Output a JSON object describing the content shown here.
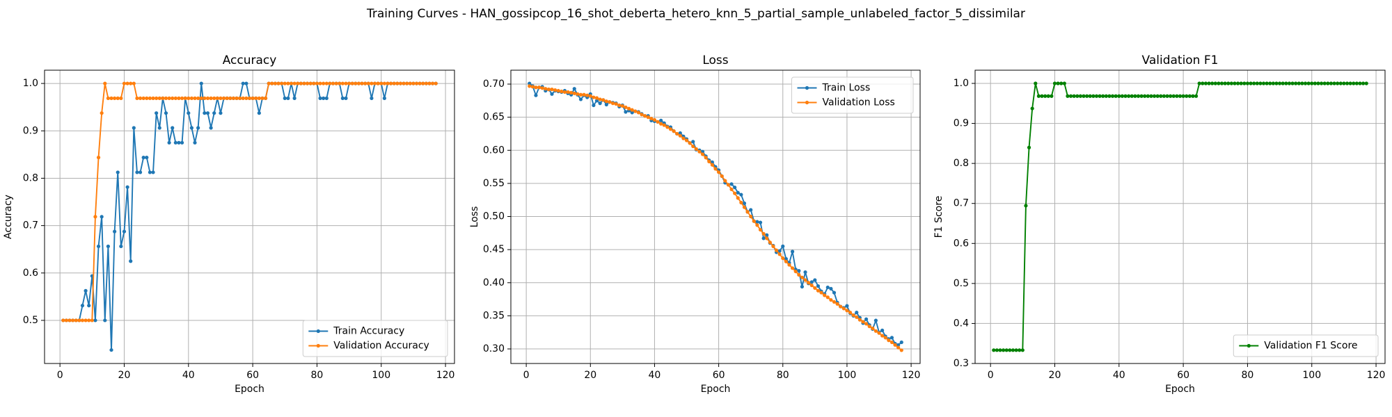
{
  "title": "Training Curves - HAN_gossipcop_16_shot_deberta_hetero_knn_5_partial_sample_unlabeled_factor_5_dissimilar",
  "chart_data": [
    {
      "type": "line",
      "title": "Accuracy",
      "xlabel": "Epoch",
      "ylabel": "Accuracy",
      "grid": true,
      "legend": "lower right",
      "x": [
        1,
        2,
        3,
        4,
        5,
        6,
        7,
        8,
        9,
        10,
        11,
        12,
        13,
        14,
        15,
        16,
        17,
        18,
        19,
        20,
        21,
        22,
        23,
        24,
        25,
        26,
        27,
        28,
        29,
        30,
        31,
        32,
        33,
        34,
        35,
        36,
        37,
        38,
        39,
        40,
        41,
        42,
        43,
        44,
        45,
        46,
        47,
        48,
        49,
        50,
        51,
        52,
        53,
        54,
        55,
        56,
        57,
        58,
        59,
        60,
        61,
        62,
        63,
        64,
        65,
        66,
        67,
        68,
        69,
        70,
        71,
        72,
        73,
        74,
        75,
        76,
        77,
        78,
        79,
        80,
        81,
        82,
        83,
        84,
        85,
        86,
        87,
        88,
        89,
        90,
        91,
        92,
        93,
        94,
        95,
        96,
        97,
        98,
        99,
        100,
        101,
        102,
        103,
        104,
        105,
        106,
        107,
        108,
        109,
        110,
        111,
        112,
        113,
        114,
        115,
        116,
        117
      ],
      "xlim": [
        -4.8,
        122.8
      ],
      "xticks": [
        0,
        20,
        40,
        60,
        80,
        100,
        120
      ],
      "ylim": [
        0.409,
        1.028
      ],
      "yticks": [
        0.5,
        0.6,
        0.7,
        0.8,
        0.9,
        {
          "value": 1,
          "label": "1.0"
        }
      ],
      "series": [
        {
          "name": "Train Accuracy",
          "color": "#1f77b4",
          "values": [
            0.5,
            0.5,
            0.5,
            0.5,
            0.5,
            0.5,
            0.53125,
            0.5625,
            0.53125,
            0.59375,
            0.5,
            0.65625,
            0.71875,
            0.5,
            0.65625,
            0.4375,
            0.6875,
            0.8125,
            0.65625,
            0.6875,
            0.78125,
            0.625,
            0.90625,
            0.8125,
            0.8125,
            0.84375,
            0.84375,
            0.8125,
            0.8125,
            0.9375,
            0.90625,
            0.96875,
            0.9375,
            0.875,
            0.90625,
            0.875,
            0.875,
            0.875,
            0.96875,
            0.9375,
            0.90625,
            0.875,
            0.90625,
            1,
            0.9375,
            0.9375,
            0.90625,
            0.9375,
            0.96875,
            0.9375,
            0.96875,
            0.96875,
            0.96875,
            0.96875,
            0.96875,
            0.96875,
            1,
            1,
            0.96875,
            0.96875,
            0.96875,
            0.9375,
            0.96875,
            0.96875,
            1,
            1,
            1,
            1,
            1,
            0.96875,
            0.96875,
            1,
            0.96875,
            1,
            1,
            1,
            1,
            1,
            1,
            1,
            0.96875,
            0.96875,
            0.96875,
            1,
            1,
            1,
            1,
            0.96875,
            0.96875,
            1,
            1,
            1,
            1,
            1,
            1,
            1,
            0.96875,
            1,
            1,
            1,
            0.96875,
            1,
            1,
            1,
            1,
            1,
            1,
            1,
            1,
            1,
            1,
            1,
            1,
            1,
            1,
            1,
            1
          ]
        },
        {
          "name": "Validation Accuracy",
          "color": "#ff7f0e",
          "values": [
            0.5,
            0.5,
            0.5,
            0.5,
            0.5,
            0.5,
            0.5,
            0.5,
            0.5,
            0.5,
            0.71875,
            0.84375,
            0.9375,
            1,
            0.96875,
            0.96875,
            0.96875,
            0.96875,
            0.96875,
            1,
            1,
            1,
            1,
            0.96875,
            0.96875,
            0.96875,
            0.96875,
            0.96875,
            0.96875,
            0.96875,
            0.96875,
            0.96875,
            0.96875,
            0.96875,
            0.96875,
            0.96875,
            0.96875,
            0.96875,
            0.96875,
            0.96875,
            0.96875,
            0.96875,
            0.96875,
            0.96875,
            0.96875,
            0.96875,
            0.96875,
            0.96875,
            0.96875,
            0.96875,
            0.96875,
            0.96875,
            0.96875,
            0.96875,
            0.96875,
            0.96875,
            0.96875,
            0.96875,
            0.96875,
            0.96875,
            0.96875,
            0.96875,
            0.96875,
            0.96875,
            1,
            1,
            1,
            1,
            1,
            1,
            1,
            1,
            1,
            1,
            1,
            1,
            1,
            1,
            1,
            1,
            1,
            1,
            1,
            1,
            1,
            1,
            1,
            1,
            1,
            1,
            1,
            1,
            1,
            1,
            1,
            1,
            1,
            1,
            1,
            1,
            1,
            1,
            1,
            1,
            1,
            1,
            1,
            1,
            1,
            1,
            1,
            1,
            1,
            1,
            1,
            1,
            1
          ]
        }
      ]
    },
    {
      "type": "line",
      "title": "Loss",
      "xlabel": "Epoch",
      "ylabel": "Loss",
      "grid": true,
      "legend": "upper right",
      "x": [
        1,
        2,
        3,
        4,
        5,
        6,
        7,
        8,
        9,
        10,
        11,
        12,
        13,
        14,
        15,
        16,
        17,
        18,
        19,
        20,
        21,
        22,
        23,
        24,
        25,
        26,
        27,
        28,
        29,
        30,
        31,
        32,
        33,
        34,
        35,
        36,
        37,
        38,
        39,
        40,
        41,
        42,
        43,
        44,
        45,
        46,
        47,
        48,
        49,
        50,
        51,
        52,
        53,
        54,
        55,
        56,
        57,
        58,
        59,
        60,
        61,
        62,
        63,
        64,
        65,
        66,
        67,
        68,
        69,
        70,
        71,
        72,
        73,
        74,
        75,
        76,
        77,
        78,
        79,
        80,
        81,
        82,
        83,
        84,
        85,
        86,
        87,
        88,
        89,
        90,
        91,
        92,
        93,
        94,
        95,
        96,
        97,
        98,
        99,
        100,
        101,
        102,
        103,
        104,
        105,
        106,
        107,
        108,
        109,
        110,
        111,
        112,
        113,
        114,
        115,
        116,
        117
      ],
      "xlim": [
        -4.8,
        122.8
      ],
      "xticks": [
        0,
        20,
        40,
        60,
        80,
        100,
        120
      ],
      "ylim": [
        0.278,
        0.721
      ],
      "yticks": [
        {
          "value": 0.3,
          "label": "0.30"
        },
        0.35,
        {
          "value": 0.4,
          "label": "0.40"
        },
        0.45,
        {
          "value": 0.5,
          "label": "0.50"
        },
        0.55,
        {
          "value": 0.6,
          "label": "0.60"
        },
        0.65,
        {
          "value": 0.7,
          "label": "0.70"
        }
      ],
      "series": [
        {
          "name": "Train Loss",
          "color": "#1f77b4",
          "values": [
            0.701,
            0.697,
            0.683,
            0.695,
            0.696,
            0.69,
            0.692,
            0.685,
            0.69,
            0.689,
            0.688,
            0.69,
            0.686,
            0.684,
            0.693,
            0.684,
            0.677,
            0.683,
            0.68,
            0.685,
            0.668,
            0.675,
            0.671,
            0.676,
            0.669,
            0.673,
            0.672,
            0.671,
            0.666,
            0.668,
            0.658,
            0.66,
            0.657,
            0.659,
            0.658,
            0.655,
            0.652,
            0.652,
            0.645,
            0.644,
            0.643,
            0.645,
            0.641,
            0.636,
            0.635,
            0.629,
            0.625,
            0.626,
            0.621,
            0.617,
            0.611,
            0.613,
            0.601,
            0.6,
            0.598,
            0.591,
            0.585,
            0.582,
            0.575,
            0.57,
            0.561,
            0.551,
            0.548,
            0.549,
            0.544,
            0.536,
            0.533,
            0.52,
            0.507,
            0.51,
            0.493,
            0.492,
            0.491,
            0.467,
            0.472,
            0.46,
            0.456,
            0.446,
            0.448,
            0.455,
            0.436,
            0.43,
            0.447,
            0.42,
            0.418,
            0.394,
            0.416,
            0.399,
            0.401,
            0.404,
            0.395,
            0.387,
            0.383,
            0.393,
            0.391,
            0.385,
            0.37,
            0.364,
            0.362,
            0.365,
            0.354,
            0.35,
            0.355,
            0.347,
            0.339,
            0.345,
            0.336,
            0.33,
            0.343,
            0.325,
            0.328,
            0.319,
            0.315,
            0.317,
            0.308,
            0.306,
            0.31
          ]
        },
        {
          "name": "Validation Loss",
          "color": "#ff7f0e",
          "values": [
            0.697,
            0.696,
            0.695,
            0.695,
            0.694,
            0.693,
            0.692,
            0.692,
            0.691,
            0.69,
            0.689,
            0.688,
            0.688,
            0.687,
            0.686,
            0.685,
            0.684,
            0.684,
            0.683,
            0.682,
            0.68,
            0.679,
            0.677,
            0.676,
            0.674,
            0.673,
            0.671,
            0.67,
            0.668,
            0.667,
            0.665,
            0.663,
            0.661,
            0.659,
            0.657,
            0.654,
            0.652,
            0.65,
            0.648,
            0.646,
            0.643,
            0.64,
            0.638,
            0.635,
            0.632,
            0.629,
            0.625,
            0.622,
            0.618,
            0.615,
            0.611,
            0.606,
            0.602,
            0.598,
            0.594,
            0.589,
            0.583,
            0.578,
            0.572,
            0.567,
            0.561,
            0.554,
            0.548,
            0.541,
            0.535,
            0.528,
            0.521,
            0.514,
            0.507,
            0.5,
            0.493,
            0.487,
            0.48,
            0.474,
            0.467,
            0.461,
            0.455,
            0.449,
            0.443,
            0.437,
            0.432,
            0.427,
            0.422,
            0.417,
            0.412,
            0.408,
            0.404,
            0.4,
            0.396,
            0.392,
            0.388,
            0.385,
            0.381,
            0.378,
            0.374,
            0.371,
            0.368,
            0.364,
            0.361,
            0.358,
            0.355,
            0.351,
            0.348,
            0.344,
            0.341,
            0.338,
            0.334,
            0.331,
            0.327,
            0.324,
            0.32,
            0.317,
            0.313,
            0.31,
            0.306,
            0.302,
            0.298
          ]
        }
      ]
    },
    {
      "type": "line",
      "title": "Validation F1",
      "xlabel": "Epoch",
      "ylabel": "F1 Score",
      "grid": true,
      "legend": "lower right",
      "x": [
        1,
        2,
        3,
        4,
        5,
        6,
        7,
        8,
        9,
        10,
        11,
        12,
        13,
        14,
        15,
        16,
        17,
        18,
        19,
        20,
        21,
        22,
        23,
        24,
        25,
        26,
        27,
        28,
        29,
        30,
        31,
        32,
        33,
        34,
        35,
        36,
        37,
        38,
        39,
        40,
        41,
        42,
        43,
        44,
        45,
        46,
        47,
        48,
        49,
        50,
        51,
        52,
        53,
        54,
        55,
        56,
        57,
        58,
        59,
        60,
        61,
        62,
        63,
        64,
        65,
        66,
        67,
        68,
        69,
        70,
        71,
        72,
        73,
        74,
        75,
        76,
        77,
        78,
        79,
        80,
        81,
        82,
        83,
        84,
        85,
        86,
        87,
        88,
        89,
        90,
        91,
        92,
        93,
        94,
        95,
        96,
        97,
        98,
        99,
        100,
        101,
        102,
        103,
        104,
        105,
        106,
        107,
        108,
        109,
        110,
        111,
        112,
        113,
        114,
        115,
        116,
        117
      ],
      "xlim": [
        -4.8,
        122.8
      ],
      "xticks": [
        0,
        20,
        40,
        60,
        80,
        100,
        120
      ],
      "ylim": [
        0.3,
        1.033
      ],
      "yticks": [
        0.3,
        0.4,
        0.5,
        0.6,
        0.7,
        0.8,
        0.9,
        {
          "value": 1,
          "label": "1.0"
        }
      ],
      "series": [
        {
          "name": "Validation F1 Score",
          "color": "#008000",
          "values": [
            0.3333,
            0.3333,
            0.3333,
            0.3333,
            0.3333,
            0.3333,
            0.3333,
            0.3333,
            0.3333,
            0.3333,
            0.6944,
            0.8398,
            0.9373,
            1,
            0.9683,
            0.9683,
            0.9683,
            0.9683,
            0.9683,
            1,
            1,
            1,
            1,
            0.9683,
            0.9683,
            0.9683,
            0.9683,
            0.9683,
            0.9683,
            0.9683,
            0.9683,
            0.9683,
            0.9683,
            0.9683,
            0.9683,
            0.9683,
            0.9683,
            0.9683,
            0.9683,
            0.9683,
            0.9683,
            0.9683,
            0.9683,
            0.9683,
            0.9683,
            0.9683,
            0.9683,
            0.9683,
            0.9683,
            0.9683,
            0.9683,
            0.9683,
            0.9683,
            0.9683,
            0.9683,
            0.9683,
            0.9683,
            0.9683,
            0.9683,
            0.9683,
            0.9683,
            0.9683,
            0.9683,
            0.9683,
            1,
            1,
            1,
            1,
            1,
            1,
            1,
            1,
            1,
            1,
            1,
            1,
            1,
            1,
            1,
            1,
            1,
            1,
            1,
            1,
            1,
            1,
            1,
            1,
            1,
            1,
            1,
            1,
            1,
            1,
            1,
            1,
            1,
            1,
            1,
            1,
            1,
            1,
            1,
            1,
            1,
            1,
            1,
            1,
            1,
            1,
            1,
            1,
            1,
            1,
            1,
            1,
            1
          ]
        }
      ]
    }
  ]
}
